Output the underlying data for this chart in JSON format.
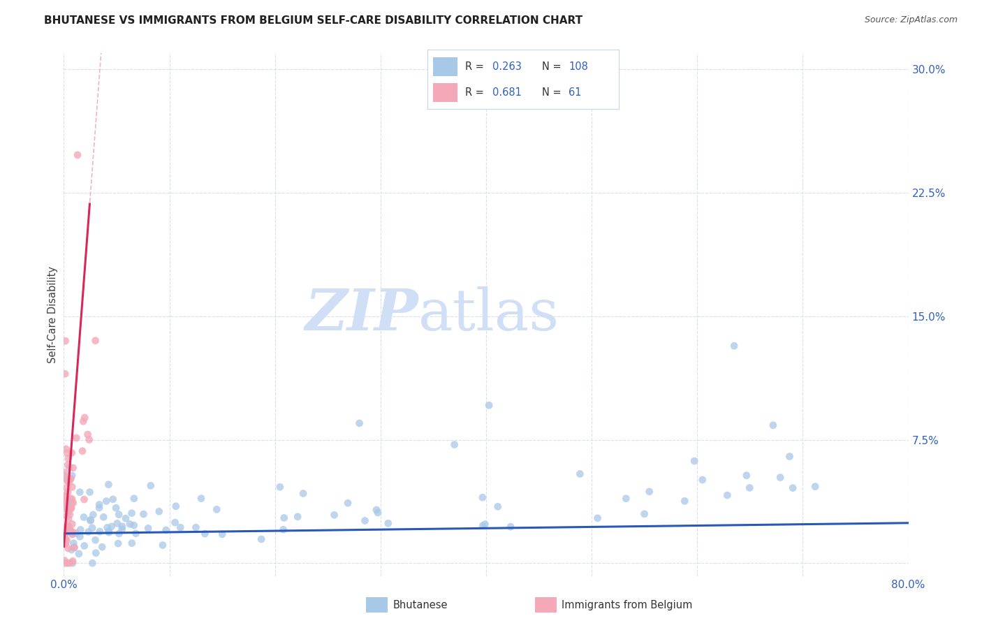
{
  "title": "BHUTANESE VS IMMIGRANTS FROM BELGIUM SELF-CARE DISABILITY CORRELATION CHART",
  "source": "Source: ZipAtlas.com",
  "ylabel": "Self-Care Disability",
  "xlim": [
    0.0,
    0.8
  ],
  "ylim": [
    -0.008,
    0.31
  ],
  "xtick_vals": [
    0.0,
    0.1,
    0.2,
    0.3,
    0.4,
    0.5,
    0.6,
    0.7,
    0.8
  ],
  "xticklabels": [
    "0.0%",
    "",
    "",
    "",
    "",
    "",
    "",
    "",
    "80.0%"
  ],
  "yticks_right": [
    0.075,
    0.15,
    0.225,
    0.3
  ],
  "yticklabels_right": [
    "7.5%",
    "15.0%",
    "22.5%",
    "30.0%"
  ],
  "R_blue": 0.263,
  "N_blue": 108,
  "R_pink": 0.681,
  "N_pink": 61,
  "legend_label_blue": "Bhutanese",
  "legend_label_pink": "Immigrants from Belgium",
  "scatter_color_blue": "#a8c8e8",
  "scatter_color_pink": "#f4a8b8",
  "trend_color_blue": "#2858b8",
  "trend_color_pink": "#d82858",
  "diag_color": "#e8b8c8",
  "grid_color": "#d8dff0",
  "background_color": "#ffffff",
  "watermark_zip": "ZIP",
  "watermark_atlas": "atlas",
  "watermark_color": "#d0dff5",
  "title_fontsize": 11,
  "source_fontsize": 9
}
